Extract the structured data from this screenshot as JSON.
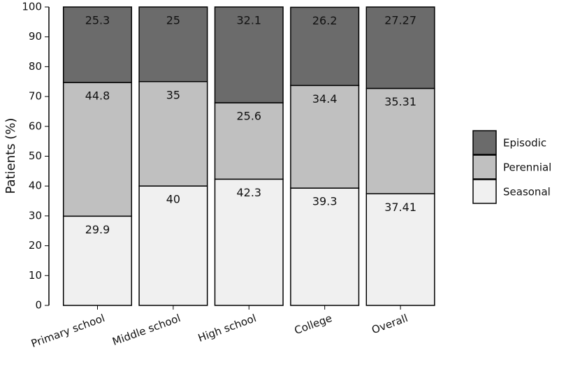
{
  "chart_data": {
    "type": "stacked_bar",
    "y_label": "Patients (%)",
    "categories": [
      "Primary school",
      "Middle school",
      "High school",
      "College",
      "Overall"
    ],
    "series": [
      {
        "name": "Episodic",
        "color": "#6b6b6b",
        "values": [
          25.3,
          25,
          32.1,
          26.2,
          27.27
        ]
      },
      {
        "name": "Perennial",
        "color": "#c0c0c0",
        "values": [
          44.8,
          35,
          25.6,
          34.4,
          35.31
        ]
      },
      {
        "name": "Seasonal",
        "color": "#f0f0f0",
        "values": [
          29.9,
          40,
          42.3,
          39.3,
          37.41
        ]
      }
    ],
    "ylim": [
      0,
      100
    ],
    "yticks": [
      0,
      10,
      20,
      30,
      40,
      50,
      60,
      70,
      80,
      90,
      100
    ],
    "legend": "right",
    "grid": false
  }
}
